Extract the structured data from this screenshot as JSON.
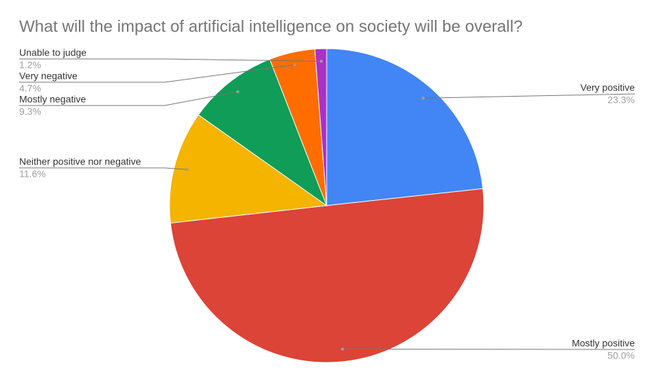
{
  "chart_data": {
    "type": "pie",
    "title": "What will the impact of artificial intelligence on society will be overall?",
    "categories": [
      "Very positive",
      "Mostly positive",
      "Neither positive nor negative",
      "Mostly negative",
      "Very negative",
      "Unable to judge"
    ],
    "values": [
      23.3,
      50.0,
      11.6,
      9.3,
      4.7,
      1.2
    ],
    "value_labels": [
      "23.3%",
      "50.0%",
      "11.6%",
      "9.3%",
      "4.7%",
      "1.2%"
    ],
    "colors": [
      "#4285f4",
      "#db4437",
      "#f4b400",
      "#0f9d58",
      "#ff6d00",
      "#ab30c4"
    ]
  }
}
